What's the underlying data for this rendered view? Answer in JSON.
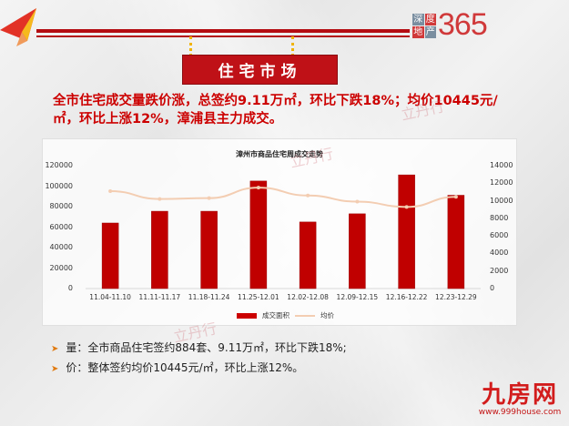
{
  "header": {
    "logo": {
      "box_chars": [
        "深",
        "度",
        "地",
        "产"
      ],
      "number": "365"
    },
    "section_sign": "住宅市场"
  },
  "headline": "全市住宅成交量跌价涨，总签约9.11万㎡，环比下跌18%；均价10445元/㎡，环比上涨12%，漳浦县主力成交。",
  "bullets": [
    {
      "icon": "arrow-right-icon",
      "text": "量：全市商品住宅签约884套、9.11万㎡，环比下跌18%;"
    },
    {
      "icon": "arrow-right-icon",
      "text": "价：整体签约均价10445元/㎡，环比上涨12%。"
    }
  ],
  "watermark": "立丹行",
  "brand": {
    "name": "九房网",
    "url": "www.999house.com"
  },
  "colors": {
    "accent_red": "#c00000",
    "line_color": "#f3cdb2",
    "rope": "#f0b300"
  },
  "chart_data": {
    "type": "bar",
    "title": "漳州市商品住宅周成交走势",
    "categories": [
      "11.04-11.10",
      "11.11-11.17",
      "11.18-11.24",
      "11.25-12.01",
      "12.02-12.08",
      "12.09-12.15",
      "12.16-12.22",
      "12.23-12.29"
    ],
    "series": [
      {
        "name": "成交面积",
        "type": "bar",
        "axis": "left",
        "values": [
          64000,
          75500,
          75500,
          105000,
          65000,
          73000,
          111000,
          91100
        ]
      },
      {
        "name": "均价",
        "type": "line",
        "axis": "right",
        "values": [
          11100,
          10200,
          10300,
          11500,
          10600,
          9900,
          9300,
          10445
        ]
      }
    ],
    "y_left": {
      "ticks": [
        "0",
        "20000",
        "40000",
        "60000",
        "80000",
        "100000",
        "120000"
      ],
      "range": [
        0,
        120000
      ]
    },
    "y_right": {
      "ticks": [
        "0",
        "2000",
        "4000",
        "6000",
        "8000",
        "10000",
        "12000",
        "14000"
      ],
      "range": [
        0,
        14000
      ]
    },
    "legend_position": "bottom",
    "grid": false
  }
}
